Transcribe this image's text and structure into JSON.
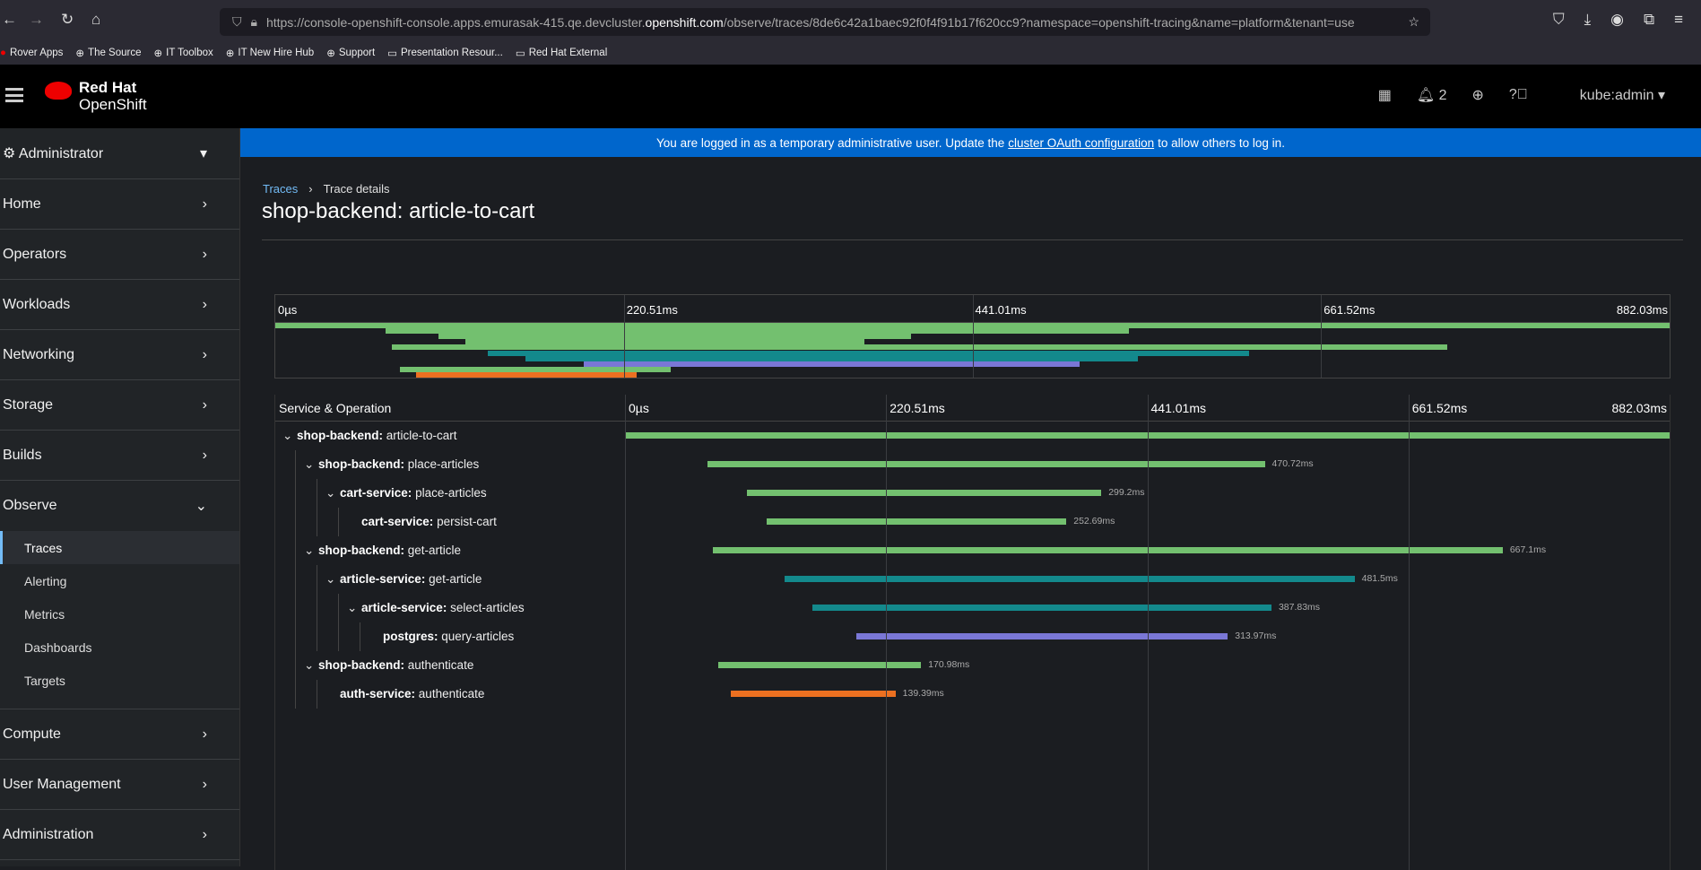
{
  "browser": {
    "url_host_prefix": "https://console-openshift-console.apps.emurasak-415.qe.devcluster.",
    "url_host_domain": "openshift.com",
    "url_path": "/observe/traces/8de6c42a1baec92f0f4f91b17f620cc9?namespace=openshift-tracing&name=platform&tenant=use",
    "bookmarks": [
      "Rover Apps",
      "The Source",
      "IT Toolbox",
      "IT New Hire Hub",
      "Support",
      "Presentation Resour...",
      "Red Hat External"
    ]
  },
  "masthead": {
    "brand_line1": "Red Hat",
    "brand_line2": "OpenShift",
    "notifications": "2",
    "user": "kube:admin"
  },
  "sidebar": {
    "perspective": "Administrator",
    "items": [
      "Home",
      "Operators",
      "Workloads",
      "Networking",
      "Storage",
      "Builds",
      "Observe"
    ],
    "observe_sub": [
      "Traces",
      "Alerting",
      "Metrics",
      "Dashboards",
      "Targets"
    ],
    "items_after": [
      "Compute",
      "User Management",
      "Administration"
    ],
    "active": "Traces"
  },
  "banner": {
    "before": "You are logged in as a temporary administrative user. Update the",
    "link": "cluster OAuth configuration",
    "after": "to allow others to log in."
  },
  "breadcrumb": {
    "parent": "Traces",
    "current": "Trace details"
  },
  "page_title": "shop-backend: article-to-cart",
  "column_header": "Service & Operation",
  "ticks": [
    "0µs",
    "220.51ms",
    "441.01ms",
    "661.52ms",
    "882.03ms"
  ],
  "colors": {
    "shop-backend": "#73c06f",
    "cart-service": "#73c06f",
    "article-service": "#13898c",
    "postgres": "#7a77d6",
    "auth-service": "#ec7021"
  },
  "chart_data": {
    "type": "gantt",
    "total_ms": 882.03,
    "spans": [
      {
        "service": "shop-backend",
        "operation": "article-to-cart",
        "depth": 0,
        "start_ms": 0,
        "duration_ms": 882.03,
        "duration": "",
        "expanded": true
      },
      {
        "service": "shop-backend",
        "operation": "place-articles",
        "depth": 1,
        "start_ms": 69.5,
        "duration_ms": 470.72,
        "duration": "470.72ms",
        "expanded": true
      },
      {
        "service": "cart-service",
        "operation": "place-articles",
        "depth": 2,
        "start_ms": 103,
        "duration_ms": 299.2,
        "duration": "299.2ms",
        "expanded": true
      },
      {
        "service": "cart-service",
        "operation": "persist-cart",
        "depth": 3,
        "start_ms": 120,
        "duration_ms": 252.69,
        "duration": "252.69ms",
        "expanded": null
      },
      {
        "service": "shop-backend",
        "operation": "get-article",
        "depth": 1,
        "start_ms": 74,
        "duration_ms": 667.1,
        "duration": "667.1ms",
        "expanded": true
      },
      {
        "service": "article-service",
        "operation": "get-article",
        "depth": 2,
        "start_ms": 134.5,
        "duration_ms": 481.5,
        "duration": "481.5ms",
        "expanded": true
      },
      {
        "service": "article-service",
        "operation": "select-articles",
        "depth": 3,
        "start_ms": 158,
        "duration_ms": 387.83,
        "duration": "387.83ms",
        "expanded": true
      },
      {
        "service": "postgres",
        "operation": "query-articles",
        "depth": 4,
        "start_ms": 195,
        "duration_ms": 313.97,
        "duration": "313.97ms",
        "expanded": null
      },
      {
        "service": "shop-backend",
        "operation": "authenticate",
        "depth": 1,
        "start_ms": 79,
        "duration_ms": 170.98,
        "duration": "170.98ms",
        "expanded": true
      },
      {
        "service": "auth-service",
        "operation": "authenticate",
        "depth": 2,
        "start_ms": 89,
        "duration_ms": 139.39,
        "duration": "139.39ms",
        "expanded": null
      }
    ]
  }
}
